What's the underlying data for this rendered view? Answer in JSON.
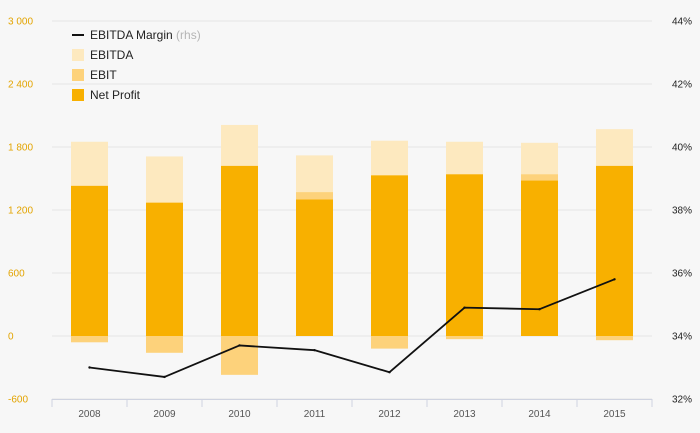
{
  "chart_data": {
    "type": "bar",
    "categories": [
      "2008",
      "2009",
      "2010",
      "2011",
      "2012",
      "2013",
      "2014",
      "2015"
    ],
    "series": [
      {
        "name": "EBITDA",
        "values": [
          1850,
          1710,
          2010,
          1720,
          1860,
          1850,
          1840,
          1970
        ],
        "color": "#fde9bf",
        "axis": "left"
      },
      {
        "name": "EBIT",
        "values": [
          -60,
          -160,
          -370,
          1370,
          -120,
          -30,
          1540,
          -40
        ],
        "color": "#fdd27b",
        "axis": "left"
      },
      {
        "name": "Net Profit",
        "values": [
          1430,
          1270,
          1620,
          1300,
          1530,
          1540,
          1480,
          1620
        ],
        "color": "#f8b000",
        "axis": "left"
      },
      {
        "name": "EBITDA Margin",
        "values": [
          33.0,
          32.7,
          33.7,
          33.55,
          32.85,
          34.9,
          34.85,
          35.8
        ],
        "color": "#111111",
        "axis": "right",
        "type": "line"
      }
    ],
    "legend": {
      "items": [
        {
          "label": "EBITDA Margin",
          "suffix": "(rhs)",
          "kind": "line",
          "color": "#111111"
        },
        {
          "label": "EBITDA",
          "suffix": "",
          "kind": "box",
          "color": "#fde9bf"
        },
        {
          "label": "EBIT",
          "suffix": "",
          "kind": "box",
          "color": "#fdd27b"
        },
        {
          "label": "Net Profit",
          "suffix": "",
          "kind": "box",
          "color": "#f8b000"
        }
      ],
      "placement": "top-left"
    },
    "y_left": {
      "ylim": [
        -600,
        3000
      ],
      "ticks": [
        -600,
        0,
        600,
        1200,
        1800,
        2400,
        3000
      ],
      "tick_labels": [
        "-600",
        "0",
        "600",
        "1 200",
        "1 800",
        "2 400",
        "3 000"
      ],
      "color": "#e3a400"
    },
    "y_right": {
      "ylim": [
        32,
        44
      ],
      "ticks": [
        32,
        34,
        36,
        38,
        40,
        42,
        44
      ],
      "tick_labels": [
        "32%",
        "34%",
        "36%",
        "38%",
        "40%",
        "42%",
        "44%"
      ]
    },
    "grid": true,
    "title": "",
    "xlabel": "",
    "ylabel": ""
  }
}
